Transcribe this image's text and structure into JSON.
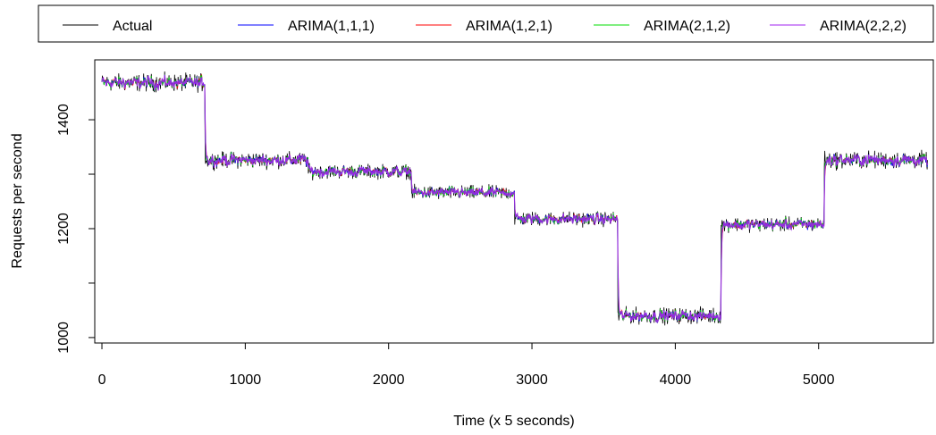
{
  "chart_data": {
    "type": "line",
    "title": "",
    "xlabel": "Time (x 5 seconds)",
    "ylabel": "Requests per second",
    "xlim": [
      -50,
      5800
    ],
    "ylim": [
      990,
      1510
    ],
    "x_ticks": [
      0,
      1000,
      2000,
      3000,
      4000,
      5000
    ],
    "y_ticks": [
      1000,
      1200,
      1400
    ],
    "y_tick_labels": [
      1000,
      1200,
      1400
    ],
    "grid": false,
    "legend_placement": "top",
    "legend": [
      "Actual",
      "ARIMA(1,1,1)",
      "ARIMA(1,2,1)",
      "ARIMA(2,1,2)",
      "ARIMA(2,2,2)"
    ],
    "series": [
      {
        "name": "Actual",
        "color": "#000000"
      },
      {
        "name": "ARIMA(1,1,1)",
        "color": "#0000ff"
      },
      {
        "name": "ARIMA(1,2,1)",
        "color": "#ff0000"
      },
      {
        "name": "ARIMA(2,1,2)",
        "color": "#00dd00"
      },
      {
        "name": "ARIMA(2,2,2)",
        "color": "#a020f0"
      }
    ],
    "segments": [
      {
        "x_start": 0,
        "x_end": 720,
        "level": 1468,
        "noise": 11
      },
      {
        "x_start": 720,
        "x_end": 1440,
        "level": 1326,
        "noise": 10
      },
      {
        "x_start": 1440,
        "x_end": 2160,
        "level": 1305,
        "noise": 9
      },
      {
        "x_start": 2160,
        "x_end": 2880,
        "level": 1266,
        "noise": 9
      },
      {
        "x_start": 2880,
        "x_end": 3600,
        "level": 1218,
        "noise": 9
      },
      {
        "x_start": 3600,
        "x_end": 4320,
        "level": 1040,
        "noise": 10
      },
      {
        "x_start": 4320,
        "x_end": 5040,
        "level": 1208,
        "noise": 9
      },
      {
        "x_start": 5040,
        "x_end": 5760,
        "level": 1326,
        "noise": 11
      }
    ]
  }
}
